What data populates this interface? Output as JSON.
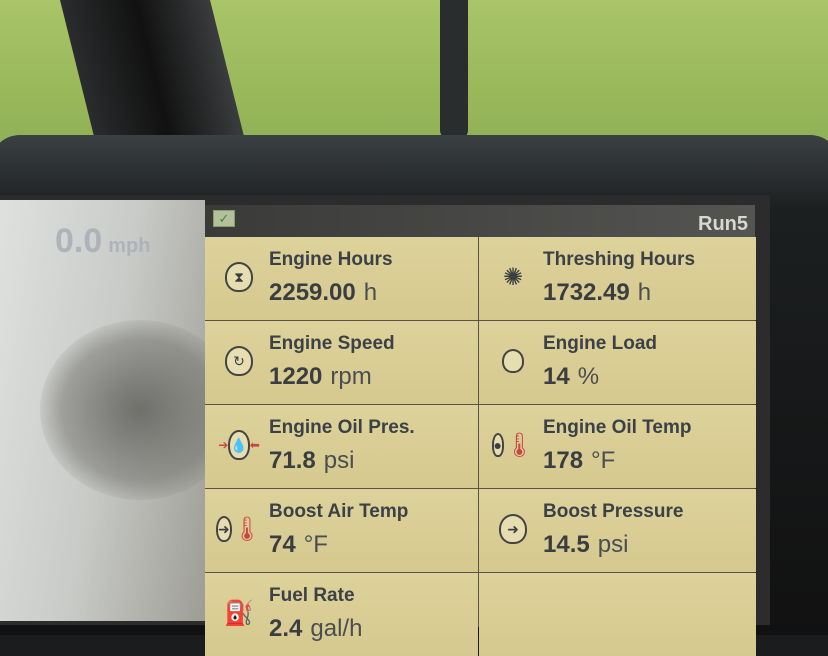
{
  "speed": {
    "value": "0.0",
    "unit": "mph"
  },
  "header": {
    "profile": "Run5"
  },
  "readings": [
    {
      "label": "Engine Hours",
      "value": "2259.00",
      "unit": "h",
      "icon": "engine-hourglass-icon"
    },
    {
      "label": "Threshing Hours",
      "value": "1732.49",
      "unit": "h",
      "icon": "threshing-hourglass-icon"
    },
    {
      "label": "Engine Speed",
      "value": "1220",
      "unit": "rpm",
      "icon": "engine-rotation-icon"
    },
    {
      "label": "Engine Load",
      "value": "14",
      "unit": "%",
      "icon": "engine-load-icon"
    },
    {
      "label": "Engine Oil Pres.",
      "value": "71.8",
      "unit": "psi",
      "icon": "oil-pressure-icon"
    },
    {
      "label": "Engine Oil Temp",
      "value": "178",
      "unit": "°F",
      "icon": "oil-temperature-icon"
    },
    {
      "label": "Boost Air Temp",
      "value": "74",
      "unit": "°F",
      "icon": "boost-air-temp-icon"
    },
    {
      "label": "Boost Pressure",
      "value": "14.5",
      "unit": "psi",
      "icon": "boost-pressure-icon"
    },
    {
      "label": "Fuel Rate",
      "value": "2.4",
      "unit": "gal/h",
      "icon": "fuel-rate-icon"
    }
  ]
}
